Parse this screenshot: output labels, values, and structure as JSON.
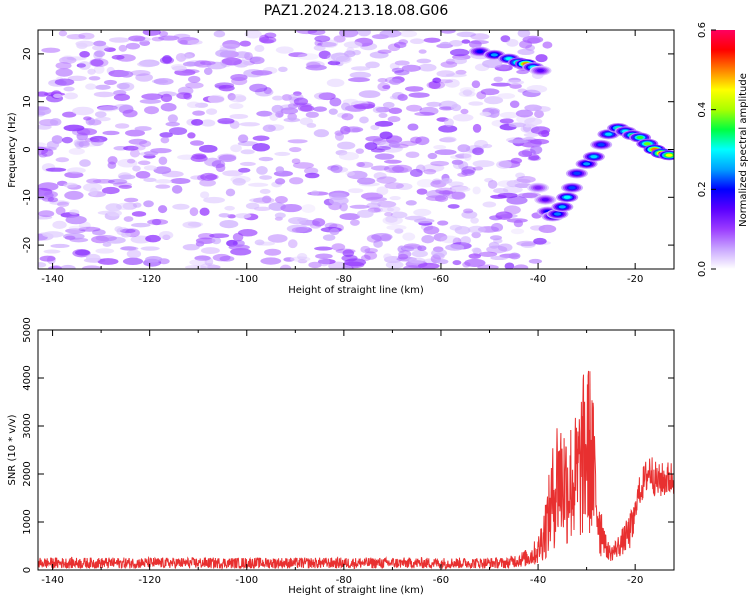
{
  "figure": {
    "title": "PAZ1.2024.213.18.08.G06"
  },
  "chart_data": [
    {
      "type": "heatmap",
      "title": "PAZ1.2024.213.18.08.G06",
      "xlabel": "Height of straight line (km)",
      "ylabel": "Frequency (Hz)",
      "xlim": [
        -143,
        -12
      ],
      "ylim": [
        -25,
        25
      ],
      "xticks": [
        -140,
        -120,
        -100,
        -80,
        -60,
        -40,
        -20
      ],
      "yticks": [
        20,
        10,
        0,
        -10,
        -20
      ],
      "grid": false,
      "colormap": [
        "#ffffff",
        "#c9a6ff",
        "#9b3cff",
        "#5a00ff",
        "#0000ff",
        "#00a0ff",
        "#00ffff",
        "#00ff40",
        "#aaff00",
        "#ffff00",
        "#ff8000",
        "#ff0000",
        "#ff0060"
      ],
      "colorbar": {
        "label": "Normalized spectral amplitude",
        "range": [
          0,
          0.6
        ],
        "ticks": [
          0.0,
          0.2,
          0.4,
          0.6
        ]
      },
      "background_noise": {
        "x_range": [
          -143,
          -38
        ],
        "frequency_range": [
          -25,
          25
        ],
        "amplitude_range": [
          0.02,
          0.12
        ]
      },
      "signal_blobs": [
        {
          "x": -52,
          "y": 20.5,
          "amp": 0.2
        },
        {
          "x": -49,
          "y": 19.8,
          "amp": 0.25
        },
        {
          "x": -46,
          "y": 19.0,
          "amp": 0.3
        },
        {
          "x": -44,
          "y": 18.2,
          "amp": 0.38
        },
        {
          "x": -42.5,
          "y": 17.9,
          "amp": 0.5
        },
        {
          "x": -41,
          "y": 17.2,
          "amp": 0.3
        },
        {
          "x": -39.5,
          "y": 16.5,
          "amp": 0.15
        },
        {
          "x": -40,
          "y": -8.0,
          "amp": 0.12
        },
        {
          "x": -38.5,
          "y": -10.5,
          "amp": 0.15
        },
        {
          "x": -38,
          "y": -13.0,
          "amp": 0.2
        },
        {
          "x": -37,
          "y": -14.0,
          "amp": 0.22
        },
        {
          "x": -36,
          "y": -13.5,
          "amp": 0.24
        },
        {
          "x": -35,
          "y": -12.0,
          "amp": 0.26
        },
        {
          "x": -34,
          "y": -10.0,
          "amp": 0.3
        },
        {
          "x": -33,
          "y": -8.0,
          "amp": 0.22
        },
        {
          "x": -32,
          "y": -5.0,
          "amp": 0.22
        },
        {
          "x": -30,
          "y": -3.0,
          "amp": 0.25
        },
        {
          "x": -28.5,
          "y": -1.5,
          "amp": 0.28
        },
        {
          "x": -27,
          "y": 1.0,
          "amp": 0.22
        },
        {
          "x": -25.5,
          "y": 3.2,
          "amp": 0.28
        },
        {
          "x": -23.5,
          "y": 4.5,
          "amp": 0.32
        },
        {
          "x": -22,
          "y": 3.8,
          "amp": 0.3
        },
        {
          "x": -20.5,
          "y": 3.0,
          "amp": 0.35
        },
        {
          "x": -19,
          "y": 2.5,
          "amp": 0.36
        },
        {
          "x": -17.5,
          "y": 1.2,
          "amp": 0.38
        },
        {
          "x": -16,
          "y": 0.0,
          "amp": 0.5
        },
        {
          "x": -14.5,
          "y": -0.8,
          "amp": 0.55
        },
        {
          "x": -13,
          "y": -1.2,
          "amp": 0.45
        }
      ]
    },
    {
      "type": "line",
      "xlabel": "Height of straight line (km)",
      "ylabel": "SNR (10 * v/v)",
      "xlim": [
        -143,
        -12
      ],
      "ylim": [
        0,
        5000
      ],
      "xticks": [
        -140,
        -120,
        -100,
        -80,
        -60,
        -40,
        -20
      ],
      "yticks": [
        0,
        1000,
        2000,
        3000,
        4000,
        5000
      ],
      "grid": false,
      "color": "#e83030",
      "noise_floor_range": [
        30,
        260
      ],
      "envelope": [
        {
          "x": -143,
          "y": 120
        },
        {
          "x": -60,
          "y": 140
        },
        {
          "x": -50,
          "y": 180
        },
        {
          "x": -46,
          "y": 280
        },
        {
          "x": -42,
          "y": 450
        },
        {
          "x": -40,
          "y": 700
        },
        {
          "x": -38,
          "y": 1800
        },
        {
          "x": -36,
          "y": 3400
        },
        {
          "x": -34,
          "y": 3100
        },
        {
          "x": -32,
          "y": 3300
        },
        {
          "x": -30,
          "y": 4500
        },
        {
          "x": -29,
          "y": 4200
        },
        {
          "x": -28,
          "y": 2500
        },
        {
          "x": -27,
          "y": 1400
        },
        {
          "x": -26,
          "y": 700
        },
        {
          "x": -25,
          "y": 500
        },
        {
          "x": -23,
          "y": 800
        },
        {
          "x": -21,
          "y": 1200
        },
        {
          "x": -19,
          "y": 1900
        },
        {
          "x": -17,
          "y": 2400
        },
        {
          "x": -15.5,
          "y": 2100
        },
        {
          "x": -14,
          "y": 2150
        },
        {
          "x": -12,
          "y": 2200
        }
      ]
    }
  ]
}
